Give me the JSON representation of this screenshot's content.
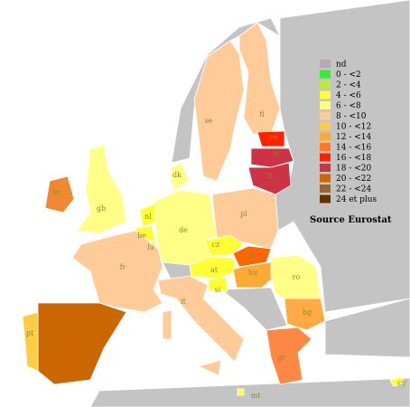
{
  "legend": [
    {
      "label": "nd",
      "color": "#b8a8b8"
    },
    {
      "label": "0 - <2",
      "color": "#33ee33"
    },
    {
      "label": "2 - <4",
      "color": "#bbee33"
    },
    {
      "label": "4 - <6",
      "color": "#ffff33"
    },
    {
      "label": "6 -  <8",
      "color": "#ffff88"
    },
    {
      "label": "8 - <10",
      "color": "#ffcc99"
    },
    {
      "label": "10 - <12",
      "color": "#ffcc44"
    },
    {
      "label": "12 - <14",
      "color": "#ffaa33"
    },
    {
      "label": "14 - <16",
      "color": "#ff7722"
    },
    {
      "label": "16 - <18",
      "color": "#ff2200"
    },
    {
      "label": "18 - <20",
      "color": "#cc3344"
    },
    {
      "label": "20 - <22",
      "color": "#cc6600"
    },
    {
      "label": "22 - <24",
      "color": "#996633"
    },
    {
      "label": "24 et plus",
      "color": "#663300"
    }
  ],
  "source": "Source Eurostat",
  "countries": [
    {
      "code": "fi",
      "color": "#ffcc99"
    },
    {
      "code": "se",
      "color": "#ffcc99"
    },
    {
      "code": "ee",
      "color": "#ff2200"
    },
    {
      "code": "lv",
      "color": "#cc3344"
    },
    {
      "code": "lt",
      "color": "#cc3344"
    },
    {
      "code": "pl",
      "color": "#ffcc99"
    },
    {
      "code": "dk",
      "color": "#ffff88"
    },
    {
      "code": "gb",
      "color": "#ffff88"
    },
    {
      "code": "ie",
      "color": "#ee8833"
    },
    {
      "code": "nl",
      "color": "#ffff33"
    },
    {
      "code": "be",
      "color": "#ffff33"
    },
    {
      "code": "lu",
      "color": "#ffff33"
    },
    {
      "code": "de",
      "color": "#ffff88"
    },
    {
      "code": "cz",
      "color": "#ffff33"
    },
    {
      "code": "sk",
      "color": "#ff6600"
    },
    {
      "code": "at",
      "color": "#ffff33"
    },
    {
      "code": "hu",
      "color": "#ffaa33"
    },
    {
      "code": "si",
      "color": "#ffff33"
    },
    {
      "code": "ro",
      "color": "#ffff88"
    },
    {
      "code": "bg",
      "color": "#ffaa44"
    },
    {
      "code": "gr",
      "color": "#ff8844"
    },
    {
      "code": "it",
      "color": "#ffcc99"
    },
    {
      "code": "fr",
      "color": "#ffcc99"
    },
    {
      "code": "es",
      "color": "#cc6600"
    },
    {
      "code": "pt",
      "color": "#ffcc44"
    },
    {
      "code": "mt",
      "color": "#ffff33"
    },
    {
      "code": "cy",
      "color": "#ffff33"
    }
  ]
}
